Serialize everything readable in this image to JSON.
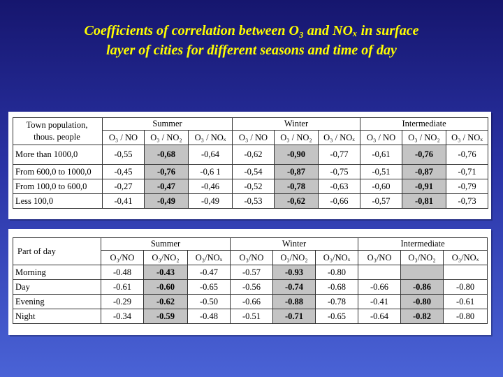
{
  "slide": {
    "title_line1": "Coefficients of correlation between O₃  and NOₓ in surface",
    "title_line2": "layer of cities for different seasons and time of day"
  },
  "table1": {
    "row_header_line1": "Town population,",
    "row_header_line2": "thous. people",
    "seasons": [
      "Summer",
      "Winter",
      "Intermediate"
    ],
    "subheaders": [
      "O₃ / NO",
      "O₃ / NO₂",
      "O₃ / NOₓ"
    ],
    "rows": [
      {
        "label": "More than 1000,0",
        "values": [
          "-0,55",
          "-0,68",
          "-0,64",
          "-0,62",
          "-0,90",
          "-0,77",
          "-0,61",
          "-0,76",
          "-0,76"
        ]
      },
      {
        "label": "From 600,0 to 1000,0",
        "values": [
          "-0,45",
          "-0,76",
          "-0,6 1",
          "-0,54",
          "-0,87",
          "-0,75",
          "-0,51",
          "-0,87",
          "-0,71"
        ]
      },
      {
        "label": "From 100,0 to 600,0",
        "values": [
          "-0,27",
          "-0,47",
          "-0,46",
          "-0,52",
          "-0,78",
          "-0,63",
          "-0,60",
          "-0,91",
          "-0,79"
        ]
      },
      {
        "label": "Less 100,0",
        "values": [
          "-0,41",
          "-0,49",
          "-0,49",
          "-0,53",
          "-0,62",
          "-0,66",
          "-0,57",
          "-0,81",
          "-0,73"
        ]
      }
    ]
  },
  "table2": {
    "row_header": "Part of day",
    "seasons": [
      "Summer",
      "Winter",
      "Intermediate"
    ],
    "subheaders": [
      "O₃/NO",
      "O₃/NO₂",
      "O₃/NOₓ"
    ],
    "rows": [
      {
        "label": "Morning",
        "values": [
          "-0.48",
          "-0.43",
          "-0.47",
          "-0.57",
          "-0.93",
          "-0.80",
          "",
          "",
          ""
        ]
      },
      {
        "label": "Day",
        "values": [
          "-0.61",
          "-0.60",
          "-0.65",
          "-0.56",
          "-0.74",
          "-0.68",
          "-0.66",
          "-0.86",
          "-0.80"
        ]
      },
      {
        "label": "Evening",
        "values": [
          "-0.29",
          "-0.62",
          "-0.50",
          "-0.66",
          "-0.88",
          "-0.78",
          "-0.41",
          "-0.80",
          "-0.61"
        ]
      },
      {
        "label": "Night",
        "values": [
          "-0.34",
          "-0.59",
          "-0.48",
          "-0.51",
          "-0.71",
          "-0.65",
          "-0.64",
          "-0.82",
          "-0.80"
        ]
      }
    ]
  }
}
